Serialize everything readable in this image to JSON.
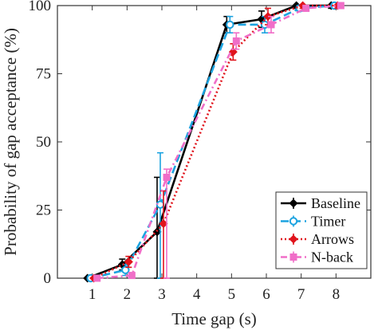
{
  "chart_data": {
    "type": "line",
    "title": "",
    "xlabel": "Time gap (s)",
    "ylabel": "Probability of gap acceptance (%)",
    "xlim": [
      0,
      9
    ],
    "ylim": [
      0,
      100
    ],
    "xticks": [
      1,
      2,
      3,
      4,
      5,
      6,
      7,
      8
    ],
    "yticks": [
      0,
      25,
      50,
      75,
      100
    ],
    "grid": "none",
    "legend_position": "bottom-right",
    "series": [
      {
        "name": "Baseline",
        "color": "#000000",
        "line_style": "solid",
        "marker": "diamond",
        "x": [
          1,
          2,
          3,
          5,
          6,
          7,
          8
        ],
        "y": [
          0,
          5,
          17,
          93,
          95,
          100,
          100
        ],
        "err_lower": [
          0,
          2,
          17,
          3,
          3,
          1,
          1
        ],
        "err_upper": [
          0,
          2,
          20,
          3,
          3,
          1,
          1
        ]
      },
      {
        "name": "Timer",
        "color": "#1ca3e0",
        "line_style": "dashed",
        "marker": "circle",
        "x": [
          1,
          2,
          3,
          5,
          6,
          7,
          8
        ],
        "y": [
          0,
          3,
          27,
          93,
          93,
          99,
          100
        ],
        "err_lower": [
          0,
          2,
          27,
          3,
          3,
          1,
          1
        ],
        "err_upper": [
          0,
          2,
          19,
          3,
          3,
          1,
          1
        ]
      },
      {
        "name": "Arrows",
        "color": "#e0141c",
        "line_style": "dotted",
        "marker": "diamond",
        "x": [
          1,
          2,
          3,
          5,
          6,
          7,
          8
        ],
        "y": [
          0,
          6,
          20,
          83,
          96,
          100,
          100
        ],
        "err_lower": [
          0,
          2,
          20,
          3,
          3,
          1,
          1
        ],
        "err_upper": [
          0,
          2,
          12,
          3,
          3,
          1,
          1
        ]
      },
      {
        "name": "N-back",
        "color": "#f06ec8",
        "line_style": "dashdot",
        "marker": "square",
        "x": [
          1,
          2,
          3,
          5,
          6,
          7,
          8
        ],
        "y": [
          0,
          1,
          37,
          87,
          93,
          99,
          100
        ],
        "err_lower": [
          0,
          1,
          37,
          3,
          3,
          1,
          1
        ],
        "err_upper": [
          0,
          1,
          3,
          3,
          3,
          1,
          1
        ]
      }
    ]
  }
}
